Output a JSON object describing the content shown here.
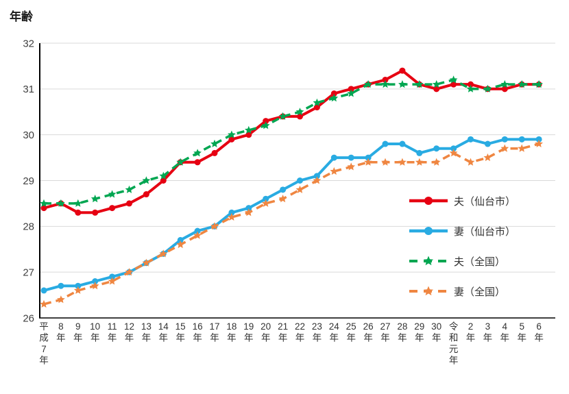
{
  "chart_data": {
    "type": "line",
    "title": "年齢",
    "categories": [
      "平成7年",
      "8年",
      "9年",
      "10年",
      "11年",
      "12年",
      "13年",
      "14年",
      "15年",
      "16年",
      "17年",
      "18年",
      "19年",
      "20年",
      "21年",
      "22年",
      "23年",
      "24年",
      "25年",
      "26年",
      "27年",
      "28年",
      "29年",
      "30年",
      "令和元年",
      "2年",
      "3年",
      "4年",
      "5年",
      "6年"
    ],
    "ylim": [
      26,
      32
    ],
    "ytick_step": 1,
    "grid": true,
    "legend_position": "right-inside",
    "colors": {
      "grid": "#d9d9d9",
      "axis": "#000000",
      "tick_text": "#404040"
    },
    "series": [
      {
        "name": "夫（仙台市）",
        "key": "husband-sendai",
        "color": "#e60012",
        "style": "solid",
        "marker": "circle",
        "values": [
          28.4,
          28.5,
          28.3,
          28.3,
          28.4,
          28.5,
          28.7,
          29.0,
          29.4,
          29.4,
          29.6,
          29.9,
          30.0,
          30.3,
          30.4,
          30.4,
          30.6,
          30.9,
          31.0,
          31.1,
          31.2,
          31.4,
          31.1,
          31.0,
          31.1,
          31.1,
          31.0,
          31.0,
          31.1,
          31.1
        ]
      },
      {
        "name": "妻（仙台市）",
        "key": "wife-sendai",
        "color": "#29abe2",
        "style": "solid",
        "marker": "circle",
        "values": [
          26.6,
          26.7,
          26.7,
          26.8,
          26.9,
          27.0,
          27.2,
          27.4,
          27.7,
          27.9,
          28.0,
          28.3,
          28.4,
          28.6,
          28.8,
          29.0,
          29.1,
          29.5,
          29.5,
          29.5,
          29.8,
          29.8,
          29.6,
          29.7,
          29.7,
          29.9,
          29.8,
          29.9,
          29.9,
          29.9
        ]
      },
      {
        "name": "夫（全国）",
        "key": "husband-national",
        "color": "#00a651",
        "style": "dashed",
        "marker": "star",
        "values": [
          28.5,
          28.5,
          28.5,
          28.6,
          28.7,
          28.8,
          29.0,
          29.1,
          29.4,
          29.6,
          29.8,
          30.0,
          30.1,
          30.2,
          30.4,
          30.5,
          30.7,
          30.8,
          30.9,
          31.1,
          31.1,
          31.1,
          31.1,
          31.1,
          31.2,
          31.0,
          31.0,
          31.1,
          31.1,
          31.1
        ]
      },
      {
        "name": "妻（全国）",
        "key": "wife-national",
        "color": "#ef8641",
        "style": "dashed",
        "marker": "star",
        "values": [
          26.3,
          26.4,
          26.6,
          26.7,
          26.8,
          27.0,
          27.2,
          27.4,
          27.6,
          27.8,
          28.0,
          28.2,
          28.3,
          28.5,
          28.6,
          28.8,
          29.0,
          29.2,
          29.3,
          29.4,
          29.4,
          29.4,
          29.4,
          29.4,
          29.6,
          29.4,
          29.5,
          29.7,
          29.7,
          29.8
        ]
      }
    ]
  }
}
